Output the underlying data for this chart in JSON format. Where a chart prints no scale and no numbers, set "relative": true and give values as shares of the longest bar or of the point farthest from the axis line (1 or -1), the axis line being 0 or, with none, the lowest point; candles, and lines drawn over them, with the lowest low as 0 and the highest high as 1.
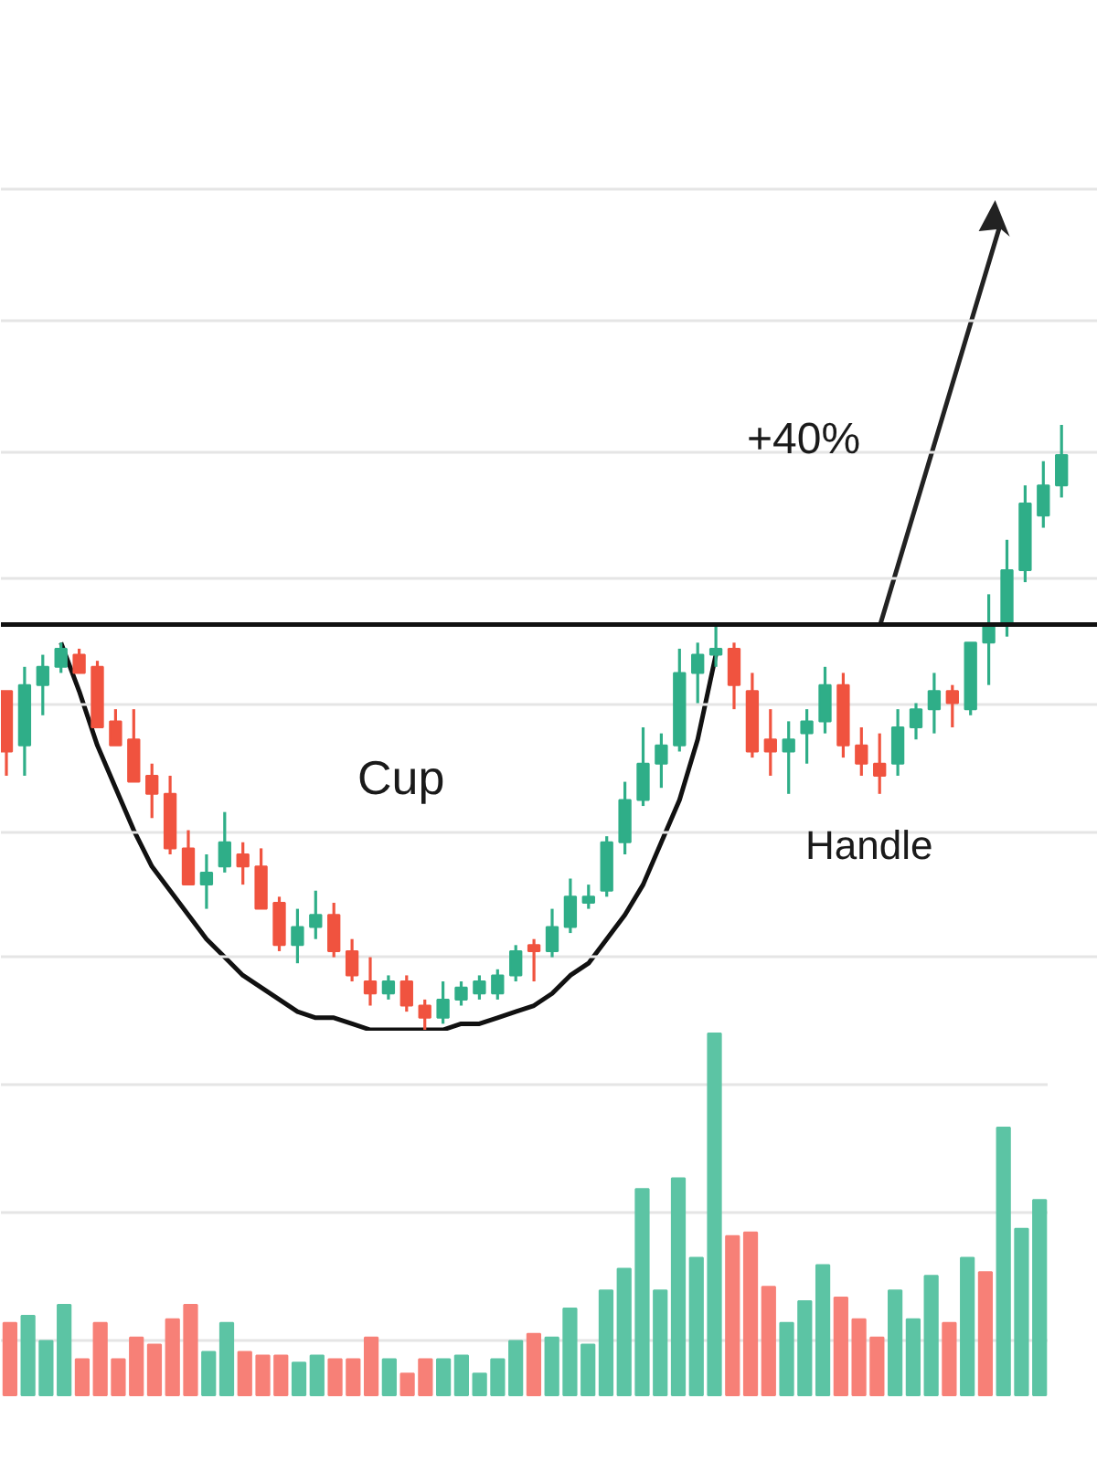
{
  "chart_data": [
    {
      "type": "candlestick",
      "relative": true,
      "grid": true,
      "categories": [
        null,
        null,
        null,
        null,
        null,
        null,
        null,
        null,
        null,
        null,
        null,
        null,
        null,
        null,
        null,
        null,
        null,
        null,
        null,
        null,
        null,
        null,
        null,
        null,
        null,
        null,
        null,
        null,
        null,
        null,
        null,
        null,
        null,
        null,
        null,
        null,
        null,
        null,
        null,
        null,
        null,
        null,
        null,
        null,
        null,
        null,
        null,
        null,
        null,
        null,
        null,
        null,
        null,
        null,
        null,
        null,
        null,
        null,
        null
      ],
      "ohlc": [
        [
          0.56,
          0.56,
          0.42,
          0.46
        ],
        [
          0.47,
          0.6,
          0.42,
          0.57
        ],
        [
          0.57,
          0.62,
          0.52,
          0.6
        ],
        [
          0.6,
          0.64,
          0.59,
          0.63
        ],
        [
          0.62,
          0.63,
          0.59,
          0.59
        ],
        [
          0.6,
          0.61,
          0.5,
          0.5
        ],
        [
          0.51,
          0.53,
          0.47,
          0.47
        ],
        [
          0.48,
          0.53,
          0.41,
          0.41
        ],
        [
          0.42,
          0.44,
          0.35,
          0.39
        ],
        [
          0.39,
          0.42,
          0.29,
          0.3
        ],
        [
          0.3,
          0.33,
          0.24,
          0.24
        ],
        [
          0.24,
          0.29,
          0.2,
          0.26
        ],
        [
          0.27,
          0.36,
          0.26,
          0.31
        ],
        [
          0.29,
          0.31,
          0.24,
          0.27
        ],
        [
          0.27,
          0.3,
          0.2,
          0.2
        ],
        [
          0.21,
          0.22,
          0.13,
          0.14
        ],
        [
          0.14,
          0.2,
          0.11,
          0.17
        ],
        [
          0.17,
          0.23,
          0.15,
          0.19
        ],
        [
          0.19,
          0.21,
          0.12,
          0.13
        ],
        [
          0.13,
          0.15,
          0.08,
          0.09
        ],
        [
          0.08,
          0.12,
          0.04,
          0.06
        ],
        [
          0.06,
          0.09,
          0.05,
          0.08
        ],
        [
          0.08,
          0.09,
          0.03,
          0.04
        ],
        [
          0.04,
          0.05,
          0.0,
          0.02
        ],
        [
          0.02,
          0.08,
          0.01,
          0.05
        ],
        [
          0.05,
          0.08,
          0.04,
          0.07
        ],
        [
          0.06,
          0.09,
          0.05,
          0.08
        ],
        [
          0.06,
          0.1,
          0.05,
          0.09
        ],
        [
          0.09,
          0.14,
          0.08,
          0.13
        ],
        [
          0.14,
          0.15,
          0.08,
          0.13
        ],
        [
          0.13,
          0.2,
          0.12,
          0.17
        ],
        [
          0.17,
          0.25,
          0.16,
          0.22
        ],
        [
          0.21,
          0.24,
          0.2,
          0.22
        ],
        [
          0.23,
          0.32,
          0.22,
          0.31
        ],
        [
          0.31,
          0.41,
          0.29,
          0.38
        ],
        [
          0.38,
          0.5,
          0.37,
          0.44
        ],
        [
          0.44,
          0.49,
          0.4,
          0.47
        ],
        [
          0.47,
          0.63,
          0.46,
          0.59
        ],
        [
          0.59,
          0.64,
          0.54,
          0.62
        ],
        [
          0.62,
          0.67,
          0.6,
          0.63
        ],
        [
          0.63,
          0.64,
          0.53,
          0.57
        ],
        [
          0.56,
          0.59,
          0.45,
          0.46
        ],
        [
          0.48,
          0.53,
          0.42,
          0.46
        ],
        [
          0.46,
          0.51,
          0.39,
          0.48
        ],
        [
          0.49,
          0.53,
          0.44,
          0.51
        ],
        [
          0.51,
          0.6,
          0.49,
          0.57
        ],
        [
          0.57,
          0.59,
          0.45,
          0.47
        ],
        [
          0.47,
          0.5,
          0.42,
          0.44
        ],
        [
          0.44,
          0.49,
          0.39,
          0.42
        ],
        [
          0.44,
          0.53,
          0.42,
          0.5
        ],
        [
          0.5,
          0.54,
          0.48,
          0.53
        ],
        [
          0.53,
          0.59,
          0.49,
          0.56
        ],
        [
          0.56,
          0.57,
          0.5,
          0.54
        ],
        [
          0.53,
          0.64,
          0.52,
          0.64
        ],
        [
          0.64,
          0.72,
          0.57,
          0.67
        ],
        [
          0.67,
          0.81,
          0.65,
          0.76
        ],
        [
          0.76,
          0.9,
          0.74,
          0.87
        ],
        [
          0.85,
          0.94,
          0.83,
          0.9
        ],
        [
          0.9,
          1.0,
          0.88,
          0.95
        ]
      ],
      "colors": [
        "#f0533f",
        "#2fae88",
        "#2fae88",
        "#2fae88",
        "#f0533f",
        "#f0533f",
        "#f0533f",
        "#f0533f",
        "#f0533f",
        "#f0533f",
        "#f0533f",
        "#2fae88",
        "#2fae88",
        "#f0533f",
        "#f0533f",
        "#f0533f",
        "#2fae88",
        "#2fae88",
        "#f0533f",
        "#f0533f",
        "#f0533f",
        "#2fae88",
        "#f0533f",
        "#f0533f",
        "#2fae88",
        "#2fae88",
        "#2fae88",
        "#2fae88",
        "#2fae88",
        "#f0533f",
        "#2fae88",
        "#2fae88",
        "#2fae88",
        "#2fae88",
        "#2fae88",
        "#2fae88",
        "#2fae88",
        "#2fae88",
        "#2fae88",
        "#2fae88",
        "#f0533f",
        "#f0533f",
        "#f0533f",
        "#2fae88",
        "#2fae88",
        "#2fae88",
        "#f0533f",
        "#f0533f",
        "#f0533f",
        "#2fae88",
        "#2fae88",
        "#2fae88",
        "#f0533f",
        "#2fae88",
        "#2fae88",
        "#2fae88",
        "#2fae88",
        "#2fae88",
        "#2fae88"
      ],
      "series": [
        {
          "type": "line",
          "color": "#111111",
          "values": [
            null,
            null,
            null,
            0.64,
            0.56,
            0.47,
            0.4,
            0.33,
            0.27,
            0.23,
            0.19,
            0.15,
            0.12,
            0.09,
            0.07,
            0.05,
            0.03,
            0.02,
            0.02,
            0.01,
            0.0,
            0.0,
            0.0,
            0.0,
            0.0,
            0.01,
            0.01,
            0.02,
            0.03,
            0.04,
            0.06,
            0.09,
            0.11,
            0.15,
            0.19,
            0.24,
            0.31,
            0.38,
            0.48,
            0.62,
            null,
            null,
            null,
            null,
            null,
            null,
            null,
            null,
            null,
            null,
            null,
            null,
            null,
            null,
            null,
            null,
            null,
            null,
            null
          ]
        }
      ],
      "ref_lines": [
        {
          "axis": "y",
          "value": 0.67,
          "color": "#111111",
          "line_style": "solid"
        }
      ],
      "annotations": [
        "Cup",
        "Handle",
        "+40%"
      ]
    },
    {
      "type": "bar",
      "relative": true,
      "grid": true,
      "categories": [
        null,
        null,
        null,
        null,
        null,
        null,
        null,
        null,
        null,
        null,
        null,
        null,
        null,
        null,
        null,
        null,
        null,
        null,
        null,
        null,
        null,
        null,
        null,
        null,
        null,
        null,
        null,
        null,
        null,
        null,
        null,
        null,
        null,
        null,
        null,
        null,
        null,
        null,
        null,
        null,
        null,
        null,
        null,
        null,
        null,
        null,
        null,
        null,
        null,
        null,
        null,
        null,
        null,
        null,
        null,
        null,
        null,
        null
      ],
      "values": [
        0.2,
        0.22,
        0.15,
        0.25,
        0.1,
        0.2,
        0.1,
        0.16,
        0.14,
        0.21,
        0.25,
        0.12,
        0.2,
        0.12,
        0.11,
        0.11,
        0.09,
        0.11,
        0.1,
        0.1,
        0.16,
        0.1,
        0.06,
        0.1,
        0.1,
        0.11,
        0.06,
        0.1,
        0.15,
        0.17,
        0.16,
        0.24,
        0.14,
        0.29,
        0.35,
        0.57,
        0.29,
        0.6,
        0.38,
        1.0,
        0.44,
        0.45,
        0.3,
        0.2,
        0.26,
        0.36,
        0.27,
        0.21,
        0.16,
        0.29,
        0.21,
        0.33,
        0.2,
        0.38,
        0.34,
        0.74,
        0.46,
        0.54
      ],
      "colors": [
        "#f78077",
        "#5cc4a4",
        "#5cc4a4",
        "#5cc4a4",
        "#f78077",
        "#f78077",
        "#f78077",
        "#f78077",
        "#f78077",
        "#f78077",
        "#f78077",
        "#5cc4a4",
        "#5cc4a4",
        "#f78077",
        "#f78077",
        "#f78077",
        "#5cc4a4",
        "#5cc4a4",
        "#f78077",
        "#f78077",
        "#f78077",
        "#5cc4a4",
        "#f78077",
        "#f78077",
        "#5cc4a4",
        "#5cc4a4",
        "#5cc4a4",
        "#5cc4a4",
        "#5cc4a4",
        "#f78077",
        "#5cc4a4",
        "#5cc4a4",
        "#5cc4a4",
        "#5cc4a4",
        "#5cc4a4",
        "#5cc4a4",
        "#5cc4a4",
        "#5cc4a4",
        "#5cc4a4",
        "#5cc4a4",
        "#f78077",
        "#f78077",
        "#f78077",
        "#5cc4a4",
        "#5cc4a4",
        "#5cc4a4",
        "#f78077",
        "#f78077",
        "#f78077",
        "#5cc4a4",
        "#5cc4a4",
        "#5cc4a4",
        "#f78077",
        "#5cc4a4",
        "#f78077",
        "#5cc4a4",
        "#5cc4a4",
        "#5cc4a4"
      ]
    }
  ]
}
